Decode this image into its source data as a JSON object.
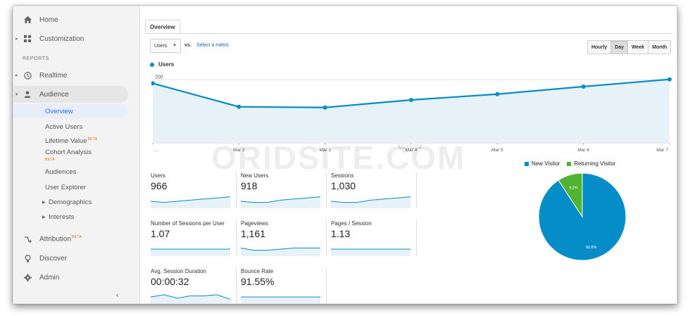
{
  "sidebar": {
    "home": "Home",
    "customization": "Customization",
    "reports_section": "REPORTS",
    "realtime": "Realtime",
    "audience": "Audience",
    "audience_items": {
      "overview": "Overview",
      "active_users": "Active Users",
      "lifetime_value": "Lifetime Value",
      "cohort_analysis": "Cohort Analysis",
      "audiences": "Audiences",
      "user_explorer": "User Explorer",
      "demographics": "Demographics",
      "interests": "Interests"
    },
    "beta_badge": "BETA",
    "attribution": "Attribution",
    "discover": "Discover",
    "admin": "Admin",
    "collapse_icon": "‹"
  },
  "main": {
    "tab_overview": "Overview",
    "metric_select": "Users",
    "vs_label": "vs.",
    "select_metric_link": "Select a metric",
    "granularity": {
      "hourly": "Hourly",
      "day": "Day",
      "week": "Week",
      "month": "Month",
      "selected": "Day"
    },
    "chart_legend": "Users"
  },
  "chart_data": [
    {
      "type": "area",
      "series": [
        {
          "name": "Users",
          "values": [
            190,
            125,
            123,
            144,
            160,
            181,
            201
          ]
        }
      ],
      "x": [
        "...",
        "Mar 2",
        "Mar 3",
        "Mar 4",
        "Mar 5",
        "Mar 6",
        "Mar 7"
      ],
      "y_ticks": [
        200,
        100
      ],
      "ylim": [
        25,
        220
      ],
      "color": "#058dc7",
      "fill": "#e6f1f8"
    },
    {
      "type": "pie",
      "categories": [
        "New Visitor",
        "Returning Visitor"
      ],
      "values": [
        90.8,
        9.2
      ],
      "labels": [
        "90.8%",
        "9.2%"
      ],
      "colors": [
        "#058dc7",
        "#50b432"
      ],
      "legend": "top"
    }
  ],
  "metrics": [
    {
      "label": "Users",
      "value": "966",
      "spark": [
        5,
        4,
        5,
        6,
        7,
        8,
        9
      ]
    },
    {
      "label": "New Users",
      "value": "918",
      "spark": [
        5,
        4,
        4,
        6,
        7,
        8,
        9
      ]
    },
    {
      "label": "Sessions",
      "value": "1,030",
      "spark": [
        5,
        4,
        4,
        6,
        7,
        8,
        9
      ]
    },
    {
      "label": "Number of Sessions per User",
      "value": "1.07",
      "spark": [
        5,
        5,
        5,
        5,
        5,
        5,
        5
      ]
    },
    {
      "label": "Pageviews",
      "value": "1,161",
      "spark": [
        6,
        4,
        4,
        5,
        6,
        6,
        6
      ]
    },
    {
      "label": "Pages / Session",
      "value": "1.13",
      "spark": [
        5,
        5,
        5,
        5,
        5,
        5,
        5
      ]
    },
    {
      "label": "Avg. Session Duration",
      "value": "00:00:32",
      "spark": [
        5,
        7,
        4,
        6,
        6,
        7,
        3
      ]
    },
    {
      "label": "Bounce Rate",
      "value": "91.55%",
      "spark": [
        5,
        5,
        5,
        5,
        5,
        5,
        5
      ]
    }
  ],
  "watermark": "ORIDSITE.COM"
}
